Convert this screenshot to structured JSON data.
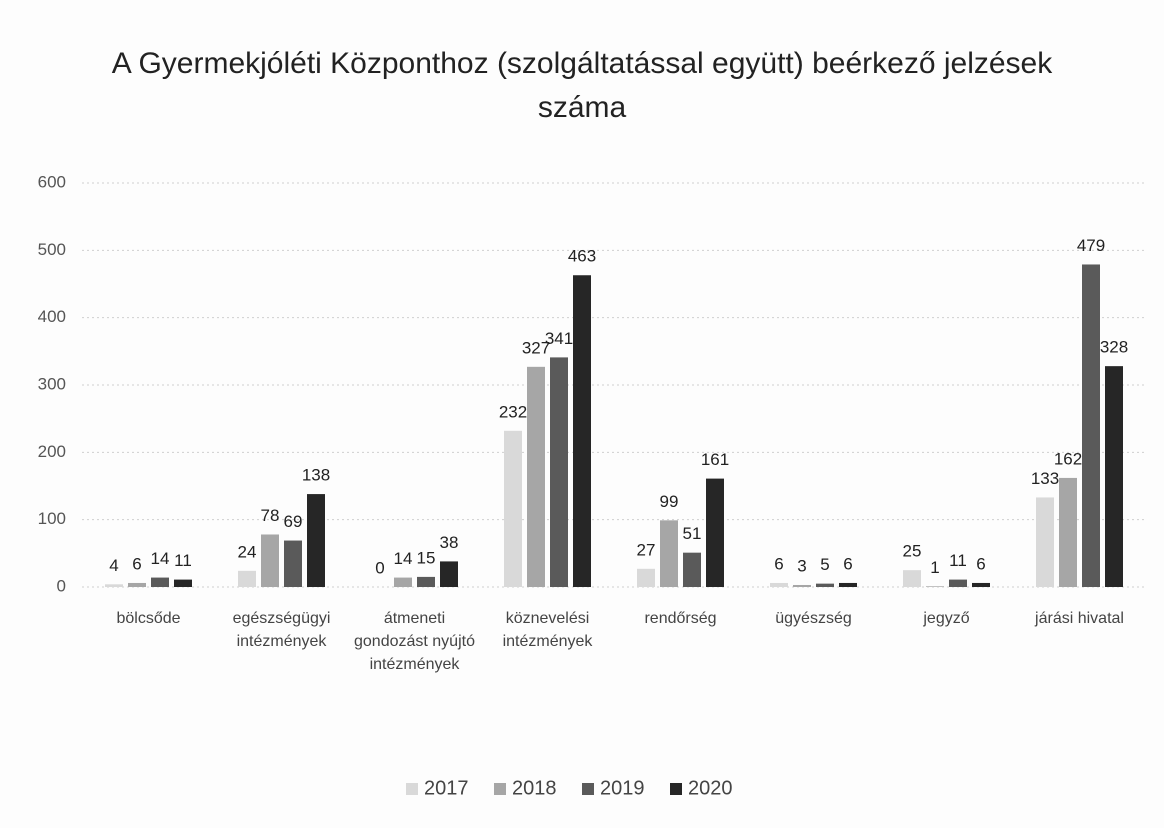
{
  "chart_data": {
    "type": "bar",
    "title": "A Gyermekjóléti Központhoz (szolgáltatással együtt) beérkező jelzések száma",
    "categories": [
      "bölcsőde",
      "egészségügyi intézmények",
      "átmeneti gondozást nyújtó intézmények",
      "köznevelési intézmények",
      "rendőrség",
      "ügyészség",
      "jegyző",
      "járási hivatal"
    ],
    "series": [
      {
        "name": "2017",
        "color": "#d9d9d9",
        "values": [
          4,
          24,
          0,
          232,
          27,
          6,
          25,
          133
        ]
      },
      {
        "name": "2018",
        "color": "#a6a6a6",
        "values": [
          6,
          78,
          14,
          327,
          99,
          3,
          1,
          162
        ]
      },
      {
        "name": "2019",
        "color": "#5a5a5a",
        "values": [
          14,
          69,
          15,
          341,
          51,
          5,
          11,
          479
        ]
      },
      {
        "name": "2020",
        "color": "#262626",
        "values": [
          11,
          138,
          38,
          463,
          161,
          6,
          6,
          328
        ]
      }
    ],
    "ylim": [
      0,
      600
    ],
    "yticks": [
      0,
      100,
      200,
      300,
      400,
      500,
      600
    ],
    "grid": true,
    "legend": "bottom"
  }
}
